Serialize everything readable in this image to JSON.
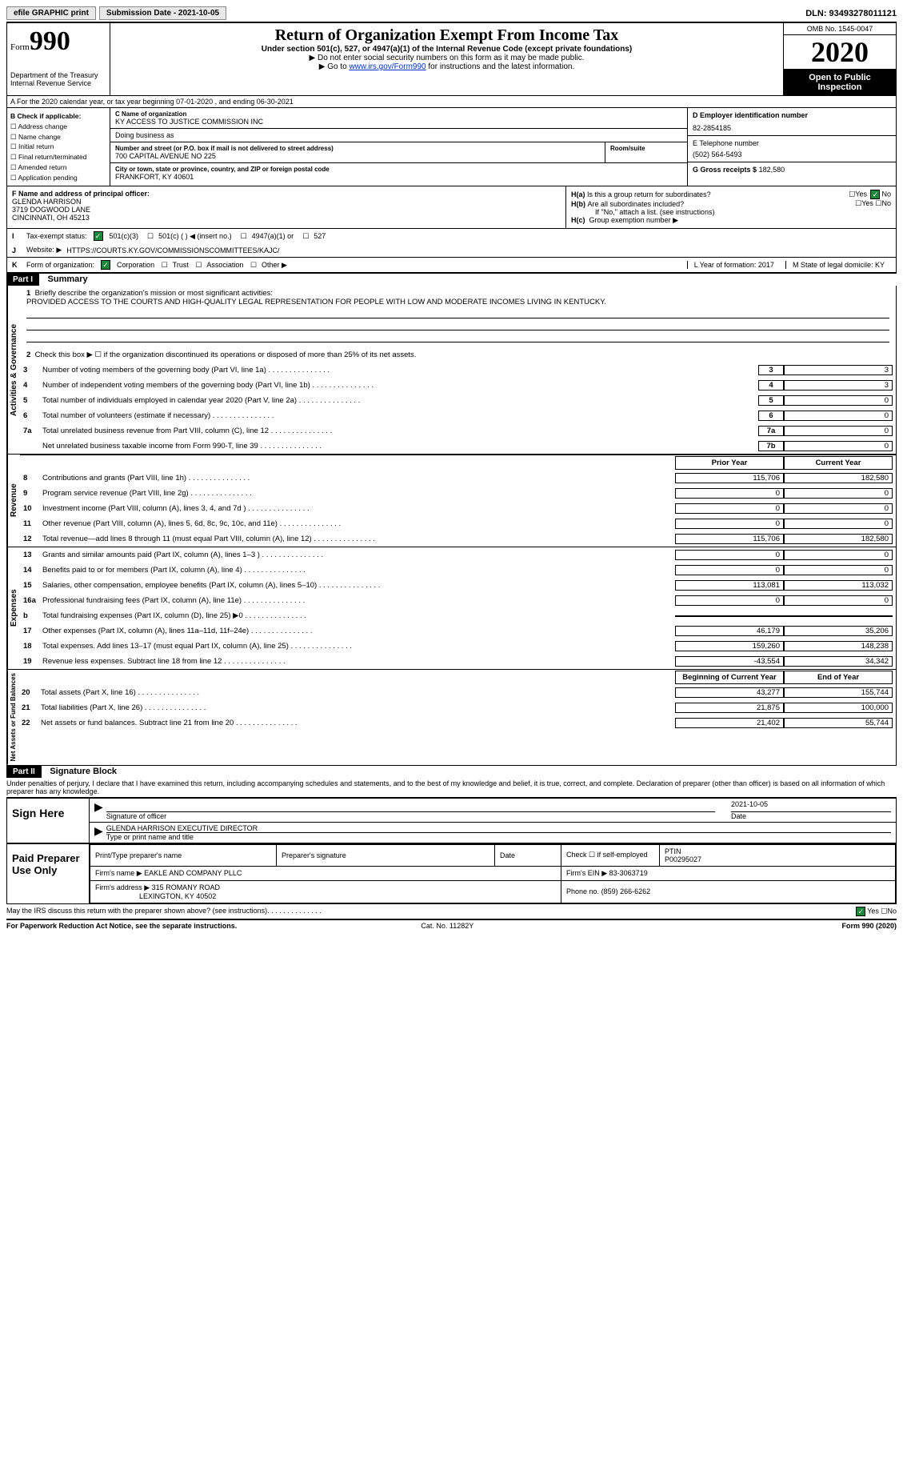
{
  "topbar": {
    "efile": "efile GRAPHIC print",
    "sub_label": "Submission Date - 2021-10-05",
    "dln": "DLN: 93493278011121"
  },
  "header": {
    "form_word": "Form",
    "form_num": "990",
    "dept": "Department of the Treasury\nInternal Revenue Service",
    "title": "Return of Organization Exempt From Income Tax",
    "subtitle": "Under section 501(c), 527, or 4947(a)(1) of the Internal Revenue Code (except private foundations)",
    "note1": "▶ Do not enter social security numbers on this form as it may be made public.",
    "note2_pre": "▶ Go to ",
    "note2_link": "www.irs.gov/Form990",
    "note2_post": " for instructions and the latest information.",
    "omb": "OMB No. 1545-0047",
    "year": "2020",
    "public": "Open to Public Inspection"
  },
  "row_a": "A For the 2020 calendar year, or tax year beginning 07-01-2020  , and ending 06-30-2021",
  "block_b": {
    "title": "B Check if applicable:",
    "items": [
      "Address change",
      "Name change",
      "Initial return",
      "Final return/terminated",
      "Amended return",
      "Application pending"
    ]
  },
  "block_c": {
    "label": "C Name of organization",
    "name": "KY ACCESS TO JUSTICE COMMISSION INC",
    "dba_label": "Doing business as",
    "addr_label": "Number and street (or P.O. box if mail is not delivered to street address)",
    "room_label": "Room/suite",
    "addr": "700 CAPITAL AVENUE NO 225",
    "city_label": "City or town, state or province, country, and ZIP or foreign postal code",
    "city": "FRANKFORT, KY  40601"
  },
  "block_d": {
    "label": "D Employer identification number",
    "val": "82-2854185"
  },
  "block_e": {
    "label": "E Telephone number",
    "val": "(502) 564-5493"
  },
  "block_g": {
    "label": "G Gross receipts $",
    "val": "182,580"
  },
  "block_f": {
    "label": "F  Name and address of principal officer:",
    "name": "GLENDA HARRISON",
    "addr1": "3719 DOGWOOD LANE",
    "addr2": "CINCINNATI, OH  45213"
  },
  "block_h": {
    "ha_q": "Is this a group return for subordinates?",
    "ha": "H(a)",
    "hb": "H(b)",
    "hb_q": "Are all subordinates included?",
    "hb_note": "If \"No,\" attach a list. (see instructions)",
    "hc": "H(c)",
    "hc_q": "Group exemption number ▶",
    "yes": "Yes",
    "no": "No"
  },
  "row_i": {
    "lbl": "I",
    "text": "Tax-exempt status:",
    "opts": [
      "501(c)(3)",
      "501(c) (  ) ◀ (insert no.)",
      "4947(a)(1) or",
      "527"
    ]
  },
  "row_j": {
    "lbl": "J",
    "text": "Website: ▶",
    "url": "HTTPS://COURTS.KY.GOV/COMMISSIONSCOMMITTEES/KAJC/"
  },
  "row_k": {
    "lbl": "K",
    "text": "Form of organization:",
    "opts": [
      "Corporation",
      "Trust",
      "Association",
      "Other ▶"
    ],
    "l_year": "L Year of formation: 2017",
    "m_state": "M State of legal domicile: KY"
  },
  "part1": {
    "hdr": "Part I",
    "title": "Summary",
    "q1": "Briefly describe the organization's mission or most significant activities:",
    "mission": "PROVIDED ACCESS TO THE COURTS AND HIGH-QUALITY LEGAL REPRESENTATION FOR PEOPLE WITH LOW AND MODERATE INCOMES LIVING IN KENTUCKY.",
    "q2": "Check this box ▶ ☐  if the organization discontinued its operations or disposed of more than 25% of its net assets.",
    "vtab_gov": "Activities & Governance",
    "vtab_rev": "Revenue",
    "vtab_exp": "Expenses",
    "vtab_net": "Net Assets or Fund Balances",
    "hdr_prior": "Prior Year",
    "hdr_curr": "Current Year",
    "hdr_boy": "Beginning of Current Year",
    "hdr_eoy": "End of Year"
  },
  "gov_lines": [
    {
      "n": "3",
      "desc": "Number of voting members of the governing body (Part VI, line 1a)",
      "box": "3",
      "val": "3"
    },
    {
      "n": "4",
      "desc": "Number of independent voting members of the governing body (Part VI, line 1b)",
      "box": "4",
      "val": "3"
    },
    {
      "n": "5",
      "desc": "Total number of individuals employed in calendar year 2020 (Part V, line 2a)",
      "box": "5",
      "val": "0"
    },
    {
      "n": "6",
      "desc": "Total number of volunteers (estimate if necessary)",
      "box": "6",
      "val": "0"
    },
    {
      "n": "7a",
      "desc": "Total unrelated business revenue from Part VIII, column (C), line 12",
      "box": "7a",
      "val": "0"
    },
    {
      "n": "",
      "desc": "Net unrelated business taxable income from Form 990-T, line 39",
      "box": "7b",
      "val": "0"
    }
  ],
  "rev_lines": [
    {
      "n": "8",
      "desc": "Contributions and grants (Part VIII, line 1h)",
      "py": "115,706",
      "cy": "182,580"
    },
    {
      "n": "9",
      "desc": "Program service revenue (Part VIII, line 2g)",
      "py": "0",
      "cy": "0"
    },
    {
      "n": "10",
      "desc": "Investment income (Part VIII, column (A), lines 3, 4, and 7d )",
      "py": "0",
      "cy": "0"
    },
    {
      "n": "11",
      "desc": "Other revenue (Part VIII, column (A), lines 5, 6d, 8c, 9c, 10c, and 11e)",
      "py": "0",
      "cy": "0"
    },
    {
      "n": "12",
      "desc": "Total revenue—add lines 8 through 11 (must equal Part VIII, column (A), line 12)",
      "py": "115,706",
      "cy": "182,580"
    }
  ],
  "exp_lines": [
    {
      "n": "13",
      "desc": "Grants and similar amounts paid (Part IX, column (A), lines 1–3 )",
      "py": "0",
      "cy": "0"
    },
    {
      "n": "14",
      "desc": "Benefits paid to or for members (Part IX, column (A), line 4)",
      "py": "0",
      "cy": "0"
    },
    {
      "n": "15",
      "desc": "Salaries, other compensation, employee benefits (Part IX, column (A), lines 5–10)",
      "py": "113,081",
      "cy": "113,032"
    },
    {
      "n": "16a",
      "desc": "Professional fundraising fees (Part IX, column (A), line 11e)",
      "py": "0",
      "cy": "0"
    },
    {
      "n": "b",
      "desc": "Total fundraising expenses (Part IX, column (D), line 25) ▶0",
      "py": "",
      "cy": "",
      "shade": true
    },
    {
      "n": "17",
      "desc": "Other expenses (Part IX, column (A), lines 11a–11d, 11f–24e)",
      "py": "46,179",
      "cy": "35,206"
    },
    {
      "n": "18",
      "desc": "Total expenses. Add lines 13–17 (must equal Part IX, column (A), line 25)",
      "py": "159,260",
      "cy": "148,238"
    },
    {
      "n": "19",
      "desc": "Revenue less expenses. Subtract line 18 from line 12",
      "py": "-43,554",
      "cy": "34,342"
    }
  ],
  "net_lines": [
    {
      "n": "20",
      "desc": "Total assets (Part X, line 16)",
      "py": "43,277",
      "cy": "155,744"
    },
    {
      "n": "21",
      "desc": "Total liabilities (Part X, line 26)",
      "py": "21,875",
      "cy": "100,000"
    },
    {
      "n": "22",
      "desc": "Net assets or fund balances. Subtract line 21 from line 20",
      "py": "21,402",
      "cy": "55,744"
    }
  ],
  "part2": {
    "hdr": "Part II",
    "title": "Signature Block",
    "perjury": "Under penalties of perjury, I declare that I have examined this return, including accompanying schedules and statements, and to the best of my knowledge and belief, it is true, correct, and complete. Declaration of preparer (other than officer) is based on all information of which preparer has any knowledge.",
    "sign_here": "Sign Here",
    "sig_officer": "Signature of officer",
    "date": "Date",
    "sig_date": "2021-10-05",
    "officer_name": "GLENDA HARRISON  EXECUTIVE DIRECTOR",
    "type_name": "Type or print name and title",
    "paid": "Paid Preparer Use Only",
    "p_name_lbl": "Print/Type preparer's name",
    "p_sig_lbl": "Preparer's signature",
    "p_date_lbl": "Date",
    "p_check": "Check ☐ if self-employed",
    "ptin_lbl": "PTIN",
    "ptin": "P00295027",
    "firm_name_lbl": "Firm's name    ▶",
    "firm_name": "EAKLE AND COMPANY PLLC",
    "firm_ein_lbl": "Firm's EIN ▶",
    "firm_ein": "83-3063719",
    "firm_addr_lbl": "Firm's address ▶",
    "firm_addr": "315 ROMANY ROAD",
    "firm_city": "LEXINGTON, KY  40502",
    "phone_lbl": "Phone no.",
    "phone": "(859) 266-6262",
    "discuss": "May the IRS discuss this return with the preparer shown above? (see instructions)",
    "yes": "Yes",
    "no": "No"
  },
  "footer": {
    "left": "For Paperwork Reduction Act Notice, see the separate instructions.",
    "mid": "Cat. No. 11282Y",
    "right": "Form 990 (2020)"
  }
}
